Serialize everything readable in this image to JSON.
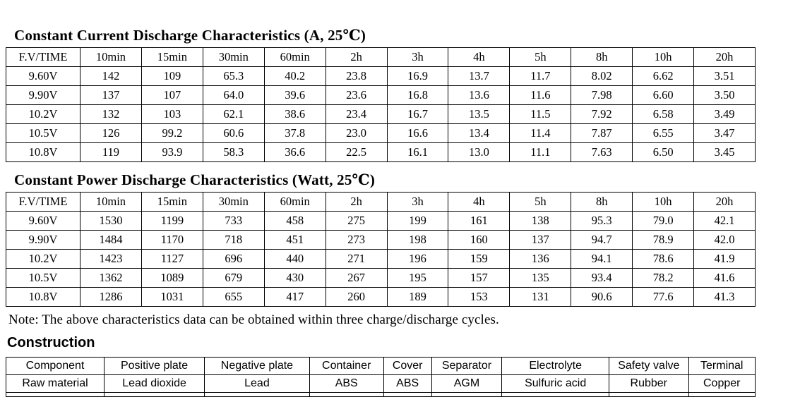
{
  "current_table": {
    "title": "Constant Current Discharge Characteristics (A, 25℃)",
    "headers": [
      "F.V/TIME",
      "10min",
      "15min",
      "30min",
      "60min",
      "2h",
      "3h",
      "4h",
      "5h",
      "8h",
      "10h",
      "20h"
    ],
    "rows": [
      [
        "9.60V",
        "142",
        "109",
        "65.3",
        "40.2",
        "23.8",
        "16.9",
        "13.7",
        "11.7",
        "8.02",
        "6.62",
        "3.51"
      ],
      [
        "9.90V",
        "137",
        "107",
        "64.0",
        "39.6",
        "23.6",
        "16.8",
        "13.6",
        "11.6",
        "7.98",
        "6.60",
        "3.50"
      ],
      [
        "10.2V",
        "132",
        "103",
        "62.1",
        "38.6",
        "23.4",
        "16.7",
        "13.5",
        "11.5",
        "7.92",
        "6.58",
        "3.49"
      ],
      [
        "10.5V",
        "126",
        "99.2",
        "60.6",
        "37.8",
        "23.0",
        "16.6",
        "13.4",
        "11.4",
        "7.87",
        "6.55",
        "3.47"
      ],
      [
        "10.8V",
        "119",
        "93.9",
        "58.3",
        "36.6",
        "22.5",
        "16.1",
        "13.0",
        "11.1",
        "7.63",
        "6.50",
        "3.45"
      ]
    ]
  },
  "power_table": {
    "title": "Constant Power Discharge Characteristics (Watt, 25℃)",
    "headers": [
      "F.V/TIME",
      "10min",
      "15min",
      "30min",
      "60min",
      "2h",
      "3h",
      "4h",
      "5h",
      "8h",
      "10h",
      "20h"
    ],
    "rows": [
      [
        "9.60V",
        "1530",
        "1199",
        "733",
        "458",
        "275",
        "199",
        "161",
        "138",
        "95.3",
        "79.0",
        "42.1"
      ],
      [
        "9.90V",
        "1484",
        "1170",
        "718",
        "451",
        "273",
        "198",
        "160",
        "137",
        "94.7",
        "78.9",
        "42.0"
      ],
      [
        "10.2V",
        "1423",
        "1127",
        "696",
        "440",
        "271",
        "196",
        "159",
        "136",
        "94.1",
        "78.6",
        "41.9"
      ],
      [
        "10.5V",
        "1362",
        "1089",
        "679",
        "430",
        "267",
        "195",
        "157",
        "135",
        "93.4",
        "78.2",
        "41.6"
      ],
      [
        "10.8V",
        "1286",
        "1031",
        "655",
        "417",
        "260",
        "189",
        "153",
        "131",
        "90.6",
        "77.6",
        "41.3"
      ]
    ]
  },
  "note": "Note: The above characteristics data can be obtained within three charge/discharge cycles.",
  "construction_table": {
    "title": "Construction",
    "headers": [
      "Component",
      "Positive plate",
      "Negative plate",
      "Container",
      "Cover",
      "Separator",
      "Electrolyte",
      "Safety valve",
      "Terminal"
    ],
    "col_widths_pct": [
      13.1,
      13.4,
      14.0,
      9.9,
      6.4,
      9.4,
      14.3,
      10.6,
      8.9
    ],
    "rows": [
      [
        "Raw material",
        "Lead dioxide",
        "Lead",
        "ABS",
        "ABS",
        "AGM",
        "Sulfuric acid",
        "Rubber",
        "Copper"
      ]
    ]
  }
}
